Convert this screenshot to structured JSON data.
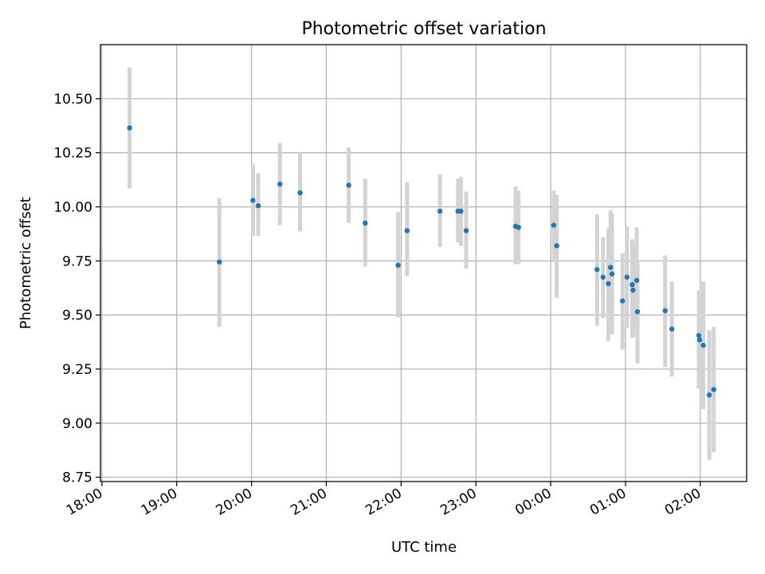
{
  "chart_data": {
    "type": "scatter",
    "title": "Photometric offset variation",
    "xlabel": "UTC time",
    "ylabel": "Photometric offset",
    "grid": true,
    "x_unit": "hours since 18:00 UTC",
    "xlim": [
      -0.02,
      8.62
    ],
    "ylim": [
      8.73,
      10.75
    ],
    "x_ticks": [
      {
        "value": 0,
        "label": "18:00"
      },
      {
        "value": 1,
        "label": "19:00"
      },
      {
        "value": 2,
        "label": "20:00"
      },
      {
        "value": 3,
        "label": "21:00"
      },
      {
        "value": 4,
        "label": "22:00"
      },
      {
        "value": 5,
        "label": "23:00"
      },
      {
        "value": 6,
        "label": "00:00"
      },
      {
        "value": 7,
        "label": "01:00"
      },
      {
        "value": 8,
        "label": "02:00"
      }
    ],
    "y_ticks": [
      {
        "value": 8.75,
        "label": "8.75"
      },
      {
        "value": 9.0,
        "label": "9.00"
      },
      {
        "value": 9.25,
        "label": "9.25"
      },
      {
        "value": 9.5,
        "label": "9.50"
      },
      {
        "value": 9.75,
        "label": "9.75"
      },
      {
        "value": 10.0,
        "label": "10.00"
      },
      {
        "value": 10.25,
        "label": "10.25"
      },
      {
        "value": 10.5,
        "label": "10.50"
      }
    ],
    "point_color": "#1f77b4",
    "errorbar_color": "#d3d3d3",
    "points": [
      {
        "x": 0.37,
        "y": 10.365,
        "lo": 10.085,
        "hi": 10.645
      },
      {
        "x": 1.57,
        "y": 9.745,
        "lo": 9.445,
        "hi": 10.04
      },
      {
        "x": 2.02,
        "y": 10.03,
        "lo": 9.865,
        "hi": 10.195
      },
      {
        "x": 2.09,
        "y": 10.005,
        "lo": 9.865,
        "hi": 10.155
      },
      {
        "x": 2.38,
        "y": 10.105,
        "lo": 9.915,
        "hi": 10.295
      },
      {
        "x": 2.65,
        "y": 10.065,
        "lo": 9.885,
        "hi": 10.25
      },
      {
        "x": 3.3,
        "y": 10.1,
        "lo": 9.925,
        "hi": 10.275
      },
      {
        "x": 3.52,
        "y": 9.925,
        "lo": 9.725,
        "hi": 10.13
      },
      {
        "x": 3.96,
        "y": 9.73,
        "lo": 9.49,
        "hi": 9.975
      },
      {
        "x": 4.08,
        "y": 9.89,
        "lo": 9.68,
        "hi": 10.115
      },
      {
        "x": 4.52,
        "y": 9.98,
        "lo": 9.815,
        "hi": 10.15
      },
      {
        "x": 4.76,
        "y": 9.98,
        "lo": 9.835,
        "hi": 10.13
      },
      {
        "x": 4.8,
        "y": 9.98,
        "lo": 9.82,
        "hi": 10.14
      },
      {
        "x": 4.87,
        "y": 9.89,
        "lo": 9.715,
        "hi": 10.07
      },
      {
        "x": 5.53,
        "y": 9.91,
        "lo": 9.735,
        "hi": 10.095
      },
      {
        "x": 5.57,
        "y": 9.905,
        "lo": 9.735,
        "hi": 10.075
      },
      {
        "x": 6.04,
        "y": 9.915,
        "lo": 9.755,
        "hi": 10.075
      },
      {
        "x": 6.08,
        "y": 9.82,
        "lo": 9.58,
        "hi": 10.055
      },
      {
        "x": 6.62,
        "y": 9.71,
        "lo": 9.45,
        "hi": 9.965
      },
      {
        "x": 6.7,
        "y": 9.675,
        "lo": 9.485,
        "hi": 9.86
      },
      {
        "x": 6.77,
        "y": 9.645,
        "lo": 9.38,
        "hi": 9.9
      },
      {
        "x": 6.8,
        "y": 9.72,
        "lo": 9.46,
        "hi": 9.985
      },
      {
        "x": 6.82,
        "y": 9.69,
        "lo": 9.41,
        "hi": 9.97
      },
      {
        "x": 6.96,
        "y": 9.565,
        "lo": 9.34,
        "hi": 9.785
      },
      {
        "x": 7.02,
        "y": 9.675,
        "lo": 9.44,
        "hi": 9.91
      },
      {
        "x": 7.09,
        "y": 9.64,
        "lo": 9.395,
        "hi": 9.85
      },
      {
        "x": 7.1,
        "y": 9.615,
        "lo": 9.395,
        "hi": 9.83
      },
      {
        "x": 7.15,
        "y": 9.66,
        "lo": 9.41,
        "hi": 9.905
      },
      {
        "x": 7.16,
        "y": 9.515,
        "lo": 9.275,
        "hi": 9.755
      },
      {
        "x": 7.53,
        "y": 9.52,
        "lo": 9.26,
        "hi": 9.775
      },
      {
        "x": 7.62,
        "y": 9.435,
        "lo": 9.215,
        "hi": 9.655
      },
      {
        "x": 7.98,
        "y": 9.405,
        "lo": 9.16,
        "hi": 9.615
      },
      {
        "x": 7.99,
        "y": 9.385,
        "lo": 9.16,
        "hi": 9.61
      },
      {
        "x": 8.04,
        "y": 9.36,
        "lo": 9.065,
        "hi": 9.655
      },
      {
        "x": 8.12,
        "y": 9.13,
        "lo": 8.83,
        "hi": 9.43
      },
      {
        "x": 8.18,
        "y": 9.155,
        "lo": 8.865,
        "hi": 9.445
      }
    ]
  }
}
